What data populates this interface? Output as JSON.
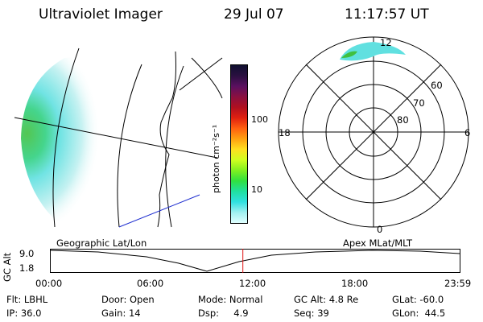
{
  "header": {
    "instrument": "Ultraviolet Imager",
    "date": "29 Jul 07",
    "time": "11:17:57 UT"
  },
  "colorbar": {
    "label": "photon cm⁻²s⁻¹",
    "ticks": [
      "100",
      "10"
    ],
    "colors": [
      "#101030",
      "#2a1040",
      "#5a1060",
      "#8a1040",
      "#b01020",
      "#e02010",
      "#ff6010",
      "#ffa010",
      "#ffe020",
      "#d0ff20",
      "#80f020",
      "#30e040",
      "#20e0a0",
      "#30e0e0",
      "#a0f0f0",
      "#e0ffff"
    ]
  },
  "polar": {
    "labels": {
      "top": "12",
      "bottom": "0",
      "left": "18",
      "right": "6"
    },
    "lat_labels": [
      "60",
      "70",
      "80"
    ]
  },
  "altplot": {
    "left_title": "Geographic Lat/Lon",
    "right_title": "Apex MLat/MLT",
    "ylabel": "GC Alt",
    "yticks": [
      "9.0",
      "1.8"
    ],
    "xticks": [
      "00:00",
      "06:00",
      "12:00",
      "18:00",
      "23:59"
    ],
    "cursor_fraction": 0.47
  },
  "info": {
    "flt": "Flt: LBHL",
    "ip": "IP: 36.0",
    "door": "Door: Open",
    "gain": "Gain: 14",
    "mode": "Mode: Normal",
    "dsp": "Dsp:     4.9",
    "gcalt": "GC Alt: 4.8 Re",
    "seq": "Seq: 39",
    "glat": "GLat: -60.0",
    "glon": "GLon:  44.5"
  },
  "colors": {
    "accent_red": "#e01010",
    "map_blue": "#2030d0",
    "aurora_cyan": "#60e0e0",
    "aurora_green": "#40c040"
  }
}
